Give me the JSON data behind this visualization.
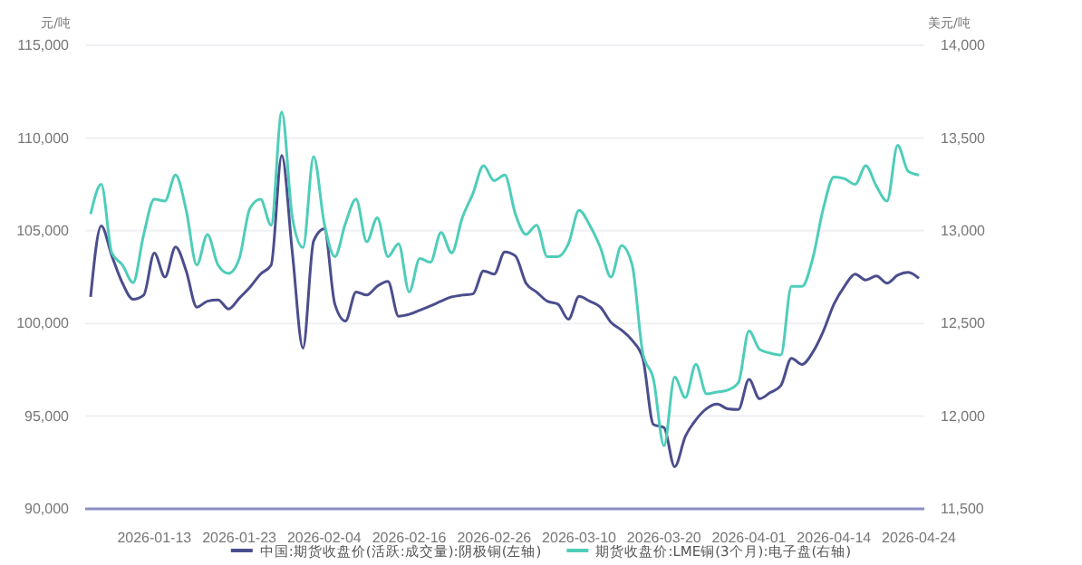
{
  "chart_data": {
    "type": "line",
    "ylabel": "元/吨",
    "y2label": "美元/吨",
    "categories": [
      null,
      null,
      null,
      null,
      null,
      null,
      "2026-01-13",
      null,
      null,
      null,
      null,
      null,
      null,
      null,
      "2026-01-23",
      null,
      null,
      null,
      null,
      null,
      null,
      null,
      "2026-02-04",
      null,
      null,
      null,
      null,
      null,
      null,
      null,
      "2026-02-16",
      null,
      null,
      null,
      null,
      null,
      null,
      null,
      "2026-02-26",
      null,
      null,
      null,
      null,
      null,
      null,
      null,
      "2026-03-10",
      null,
      null,
      null,
      null,
      null,
      null,
      null,
      "2026-03-20",
      null,
      null,
      null,
      null,
      null,
      null,
      null,
      "2026-04-01",
      null,
      null,
      null,
      null,
      null,
      null,
      null,
      "2026-04-14",
      null,
      null,
      null,
      null,
      null,
      null,
      null,
      "2026-04-24"
    ],
    "series": [
      {
        "name": "中国:期货收盘价(活跃:成交量):阴极铜(左轴)",
        "color": "#4b4e8c",
        "values": [
          101430,
          105260,
          103640,
          102170,
          101300,
          101530,
          103800,
          102500,
          104120,
          102830,
          100880,
          101200,
          101270,
          100780,
          101360,
          101950,
          102660,
          103150,
          109060,
          103800,
          98670,
          104450,
          105100,
          101040,
          100130,
          101700,
          101530,
          102010,
          102270,
          100390,
          100490,
          100710,
          100940,
          101200,
          101430,
          101530,
          101590,
          102830,
          102660,
          103860,
          103640,
          102170,
          101690,
          101200,
          101040,
          100230,
          101460,
          101200,
          100880,
          100060,
          99640,
          99090,
          98120,
          94550,
          94380,
          92270,
          93900,
          94800,
          95400,
          95650,
          95400,
          95360,
          96980,
          95940,
          96270,
          96650,
          98120,
          97790,
          98440,
          99580,
          101040,
          102010,
          102660,
          102340,
          102560,
          102170,
          102600,
          102760,
          102430
        ]
      },
      {
        "name": "期货收盘价:LME铜(3个月):电子盘(右轴)",
        "color": "#4ecdb9",
        "axis": "y2",
        "values": [
          13090,
          13250,
          12880,
          12815,
          12720,
          12980,
          13170,
          13160,
          13300,
          13110,
          12815,
          12980,
          12815,
          12770,
          12850,
          13120,
          13170,
          13030,
          13640,
          13070,
          12910,
          13400,
          13040,
          12860,
          13040,
          13170,
          12940,
          13070,
          12860,
          12930,
          12670,
          12850,
          12830,
          12990,
          12880,
          13070,
          13200,
          13350,
          13270,
          13300,
          13090,
          12980,
          13030,
          12860,
          12860,
          12930,
          13110,
          13030,
          12910,
          12750,
          12920,
          12815,
          12340,
          12200,
          11840,
          12210,
          12100,
          12280,
          12120,
          12130,
          12140,
          12180,
          12460,
          12360,
          12340,
          12330,
          12700,
          12700,
          12850,
          13120,
          13290,
          13280,
          13250,
          13350,
          13240,
          13160,
          13460,
          13320,
          13300
        ]
      }
    ],
    "ylim": [
      90000,
      115000
    ],
    "yticks": [
      {
        "value": 90000,
        "label": "90,000"
      },
      {
        "value": 95000,
        "label": "95,000"
      },
      {
        "value": 100000,
        "label": "100,000"
      },
      {
        "value": 105000,
        "label": "105,000"
      },
      {
        "value": 110000,
        "label": "110,000"
      },
      {
        "value": 115000,
        "label": "115,000"
      }
    ],
    "y2lim": [
      11500,
      14000
    ],
    "y2ticks": [
      {
        "value": 11500,
        "label": "11,500"
      },
      {
        "value": 12000,
        "label": "12,000"
      },
      {
        "value": 12500,
        "label": "12,500"
      },
      {
        "value": 13000,
        "label": "13,000"
      },
      {
        "value": 13500,
        "label": "13,500"
      },
      {
        "value": 14000,
        "label": "14,000"
      }
    ],
    "grid": "y",
    "legend": "bottom",
    "marker": "none",
    "line_style": "solid"
  }
}
